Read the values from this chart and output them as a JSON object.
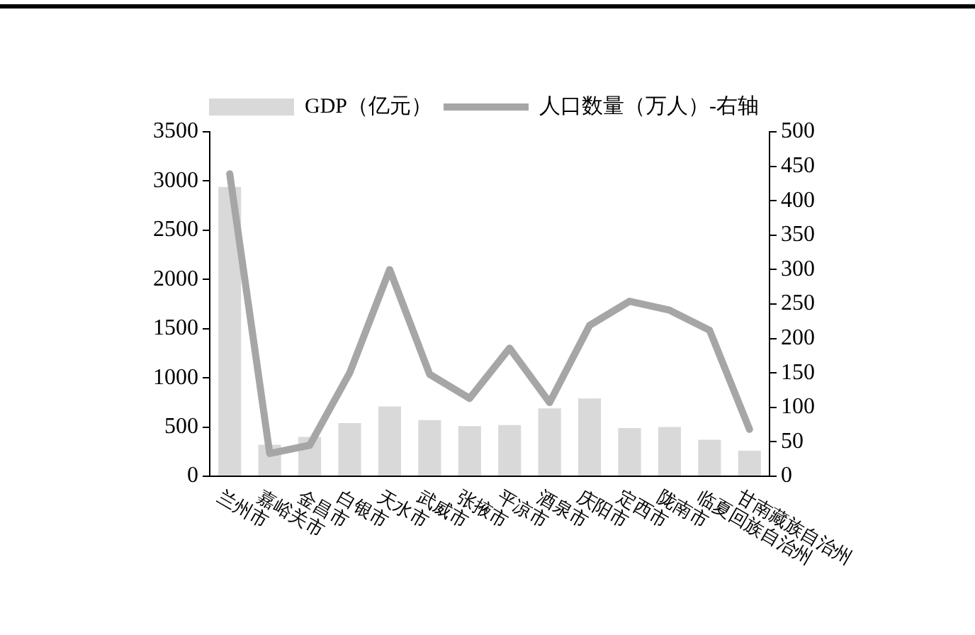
{
  "chart_data": {
    "type": "bar",
    "categories": [
      "兰州市",
      "嘉峪关市",
      "金昌市",
      "白银市",
      "天水市",
      "武威市",
      "张掖市",
      "平凉市",
      "酒泉市",
      "庆阳市",
      "定西市",
      "陇南市",
      "临夏回族自治州",
      "甘南藏族自治州"
    ],
    "series": [
      {
        "name": "GDP（亿元）",
        "color": "#d9d9d9",
        "values": [
          2940,
          320,
          400,
          540,
          710,
          570,
          510,
          520,
          690,
          790,
          490,
          500,
          370,
          260
        ]
      },
      {
        "name": "人口数量（万人）-右轴",
        "type": "line",
        "axis": "y2",
        "color": "#a6a6a6",
        "values": [
          439,
          33,
          45,
          150,
          300,
          148,
          113,
          186,
          107,
          219,
          254,
          241,
          212,
          68
        ]
      }
    ],
    "ylim": [
      0,
      3500
    ],
    "yticks": [
      0,
      500,
      1000,
      1500,
      2000,
      2500,
      3000,
      3500
    ],
    "y2lim": [
      0,
      500
    ],
    "y2ticks": [
      0,
      50,
      100,
      150,
      200,
      250,
      300,
      350,
      400,
      450,
      500
    ],
    "grid": false,
    "legend": "top",
    "marker": "none",
    "line_style": "solid"
  }
}
